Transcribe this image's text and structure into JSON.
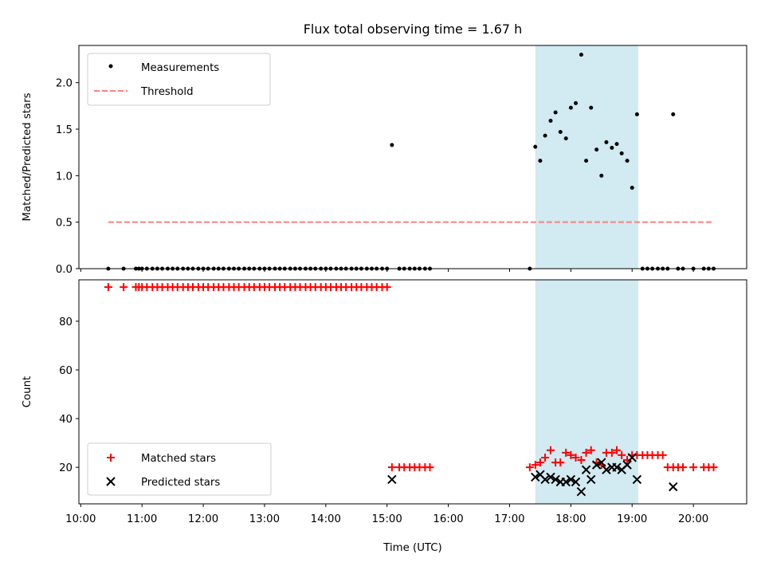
{
  "chart_data": [
    {
      "type": "scatter",
      "title": "Flux total observing time = 1.67 h",
      "ylabel": "Matched/Predicted stars",
      "xlabel": "",
      "xlim": [
        9.97,
        20.87
      ],
      "ylim": [
        0.0,
        2.4
      ],
      "yticks": [
        0.0,
        0.5,
        1.0,
        1.5,
        2.0
      ],
      "ytick_labels": [
        "0.0",
        "0.5",
        "1.0",
        "1.5",
        "2.0"
      ],
      "xticks": [
        10,
        11,
        12,
        13,
        14,
        15,
        16,
        17,
        18,
        19,
        20
      ],
      "xtick_labels": [],
      "grid": false,
      "legend": "upper left",
      "highlight_span": {
        "x0": 17.42,
        "x1": 19.1,
        "color": "#add8e6"
      },
      "series": [
        {
          "name": "Measurements",
          "color": "#000000",
          "marker": "dot",
          "x": [
            10.45,
            10.7,
            10.9,
            10.95,
            11.0,
            11.08,
            11.17,
            11.25,
            11.33,
            11.42,
            11.5,
            11.58,
            11.67,
            11.75,
            11.83,
            11.92,
            12.0,
            12.08,
            12.17,
            12.25,
            12.33,
            12.42,
            12.5,
            12.58,
            12.67,
            12.75,
            12.83,
            12.92,
            13.0,
            13.08,
            13.17,
            13.25,
            13.33,
            13.42,
            13.5,
            13.58,
            13.67,
            13.75,
            13.83,
            13.92,
            14.0,
            14.08,
            14.17,
            14.25,
            14.33,
            14.42,
            14.5,
            14.58,
            14.67,
            14.75,
            14.83,
            14.92,
            15.0,
            15.08,
            15.2,
            15.28,
            15.37,
            15.45,
            15.53,
            15.62,
            15.7,
            17.33,
            17.42,
            17.5,
            17.58,
            17.67,
            17.75,
            17.83,
            17.92,
            18.0,
            18.08,
            18.17,
            18.25,
            18.33,
            18.42,
            18.5,
            18.58,
            18.67,
            18.75,
            18.83,
            18.92,
            19.0,
            19.08,
            19.17,
            19.25,
            19.33,
            19.42,
            19.5,
            19.58,
            19.67,
            19.75,
            19.83,
            20.0,
            20.17,
            20.25,
            20.33
          ],
          "y": [
            0,
            0,
            0,
            0,
            0,
            0,
            0,
            0,
            0,
            0,
            0,
            0,
            0,
            0,
            0,
            0,
            0,
            0,
            0,
            0,
            0,
            0,
            0,
            0,
            0,
            0,
            0,
            0,
            0,
            0,
            0,
            0,
            0,
            0,
            0,
            0,
            0,
            0,
            0,
            0,
            0,
            0,
            0,
            0,
            0,
            0,
            0,
            0,
            0,
            0,
            0,
            0,
            0,
            1.33,
            0,
            0,
            0,
            0,
            0,
            0,
            0,
            0,
            1.31,
            1.16,
            1.43,
            1.59,
            1.68,
            1.47,
            1.4,
            1.73,
            1.78,
            2.3,
            1.16,
            1.73,
            1.28,
            1.0,
            1.36,
            1.3,
            1.34,
            1.24,
            1.16,
            0.87,
            1.66,
            0,
            0,
            0,
            0,
            0,
            0,
            1.66,
            0,
            0,
            0,
            0,
            0,
            0
          ]
        },
        {
          "name": "Threshold",
          "color": "#ff7f7f",
          "style": "dashed",
          "x": [
            10.45,
            20.3
          ],
          "y": [
            0.5,
            0.5
          ]
        }
      ]
    },
    {
      "type": "scatter",
      "title": "",
      "ylabel": "Count",
      "xlabel": "Time (UTC)",
      "xlim": [
        9.97,
        20.87
      ],
      "ylim": [
        5,
        97
      ],
      "yticks": [
        20,
        40,
        60,
        80
      ],
      "ytick_labels": [
        "20",
        "40",
        "60",
        "80"
      ],
      "xticks": [
        10,
        11,
        12,
        13,
        14,
        15,
        16,
        17,
        18,
        19,
        20
      ],
      "xtick_labels": [
        "10:00",
        "11:00",
        "12:00",
        "13:00",
        "14:00",
        "15:00",
        "16:00",
        "17:00",
        "18:00",
        "19:00",
        "20:00"
      ],
      "grid": false,
      "legend": "lower left",
      "highlight_span": {
        "x0": 17.42,
        "x1": 19.1,
        "color": "#add8e6"
      },
      "series": [
        {
          "name": "Matched stars",
          "color": "#ff0000",
          "marker": "plus",
          "x": [
            10.45,
            10.7,
            10.9,
            10.95,
            11.0,
            11.08,
            11.17,
            11.25,
            11.33,
            11.42,
            11.5,
            11.58,
            11.67,
            11.75,
            11.83,
            11.92,
            12.0,
            12.08,
            12.17,
            12.25,
            12.33,
            12.42,
            12.5,
            12.58,
            12.67,
            12.75,
            12.83,
            12.92,
            13.0,
            13.08,
            13.17,
            13.25,
            13.33,
            13.42,
            13.5,
            13.58,
            13.67,
            13.75,
            13.83,
            13.92,
            14.0,
            14.08,
            14.17,
            14.25,
            14.33,
            14.42,
            14.5,
            14.58,
            14.67,
            14.75,
            14.83,
            14.92,
            15.0,
            15.08,
            15.2,
            15.28,
            15.37,
            15.45,
            15.53,
            15.62,
            15.7,
            17.33,
            17.42,
            17.5,
            17.58,
            17.67,
            17.75,
            17.83,
            17.92,
            18.0,
            18.08,
            18.17,
            18.25,
            18.33,
            18.42,
            18.5,
            18.58,
            18.67,
            18.75,
            18.83,
            18.92,
            19.0,
            19.08,
            19.17,
            19.25,
            19.33,
            19.42,
            19.5,
            19.58,
            19.67,
            19.75,
            19.83,
            20.0,
            20.17,
            20.25,
            20.33
          ],
          "y": [
            94,
            94,
            94,
            94,
            94,
            94,
            94,
            94,
            94,
            94,
            94,
            94,
            94,
            94,
            94,
            94,
            94,
            94,
            94,
            94,
            94,
            94,
            94,
            94,
            94,
            94,
            94,
            94,
            94,
            94,
            94,
            94,
            94,
            94,
            94,
            94,
            94,
            94,
            94,
            94,
            94,
            94,
            94,
            94,
            94,
            94,
            94,
            94,
            94,
            94,
            94,
            94,
            94,
            20,
            20,
            20,
            20,
            20,
            20,
            20,
            20,
            20,
            21,
            22,
            24,
            27,
            22,
            22,
            26,
            25,
            24,
            23,
            26,
            27,
            22,
            21,
            26,
            26,
            27,
            25,
            23,
            25,
            25,
            25,
            25,
            25,
            25,
            25,
            20,
            20,
            20,
            20,
            20,
            20,
            20,
            20
          ]
        },
        {
          "name": "Predicted stars",
          "color": "#000000",
          "marker": "x",
          "x": [
            15.08,
            17.42,
            17.5,
            17.58,
            17.67,
            17.75,
            17.83,
            17.92,
            18.0,
            18.08,
            18.17,
            18.25,
            18.33,
            18.42,
            18.5,
            18.58,
            18.67,
            18.75,
            18.83,
            18.92,
            19.0,
            19.08,
            19.67
          ],
          "y": [
            15,
            16,
            17,
            15,
            16,
            15,
            14,
            14,
            15,
            14,
            10,
            19,
            15,
            21,
            22,
            19,
            20,
            20,
            19,
            21,
            24,
            15,
            12
          ]
        }
      ]
    }
  ]
}
